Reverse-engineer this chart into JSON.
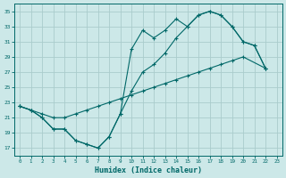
{
  "xlabel": "Humidex (Indice chaleur)",
  "bg_color": "#cce8e8",
  "grid_color": "#aacccc",
  "line_color": "#006868",
  "xlim": [
    -0.5,
    23.5
  ],
  "ylim": [
    16,
    36
  ],
  "yticks": [
    17,
    19,
    21,
    23,
    25,
    27,
    29,
    31,
    33,
    35
  ],
  "xticks": [
    0,
    1,
    2,
    3,
    4,
    5,
    6,
    7,
    8,
    9,
    10,
    11,
    12,
    13,
    14,
    15,
    16,
    17,
    18,
    19,
    20,
    21,
    22,
    23
  ],
  "line1_x": [
    0,
    1,
    2,
    3,
    4,
    5,
    6,
    7,
    8,
    9,
    10,
    11,
    12,
    13,
    14,
    15,
    16,
    17,
    18,
    19,
    20,
    21,
    22
  ],
  "line1_y": [
    22.5,
    22.0,
    21.0,
    19.5,
    19.5,
    18.0,
    17.5,
    17.0,
    18.5,
    21.5,
    30.0,
    32.5,
    31.5,
    32.5,
    34.0,
    33.0,
    34.5,
    35.0,
    34.5,
    33.0,
    31.0,
    30.5,
    27.5
  ],
  "line2_x": [
    0,
    1,
    2,
    3,
    4,
    5,
    6,
    7,
    8,
    9,
    10,
    11,
    12,
    13,
    14,
    15,
    16,
    17,
    18,
    19,
    20,
    21,
    22
  ],
  "line2_y": [
    22.5,
    22.0,
    21.0,
    19.5,
    19.5,
    18.0,
    17.5,
    17.0,
    18.5,
    21.5,
    24.5,
    27.0,
    28.0,
    29.5,
    31.5,
    33.0,
    34.5,
    35.0,
    34.5,
    33.0,
    31.0,
    30.5,
    27.5
  ],
  "line3_x": [
    0,
    1,
    2,
    3,
    4,
    5,
    6,
    7,
    8,
    9,
    10,
    11,
    12,
    13,
    14,
    15,
    16,
    17,
    18,
    19,
    20,
    22
  ],
  "line3_y": [
    22.5,
    22.0,
    21.5,
    21.0,
    21.0,
    21.5,
    22.0,
    22.5,
    23.0,
    23.5,
    24.0,
    24.5,
    25.0,
    25.5,
    26.0,
    26.5,
    27.0,
    27.5,
    28.0,
    28.5,
    29.0,
    27.5
  ]
}
